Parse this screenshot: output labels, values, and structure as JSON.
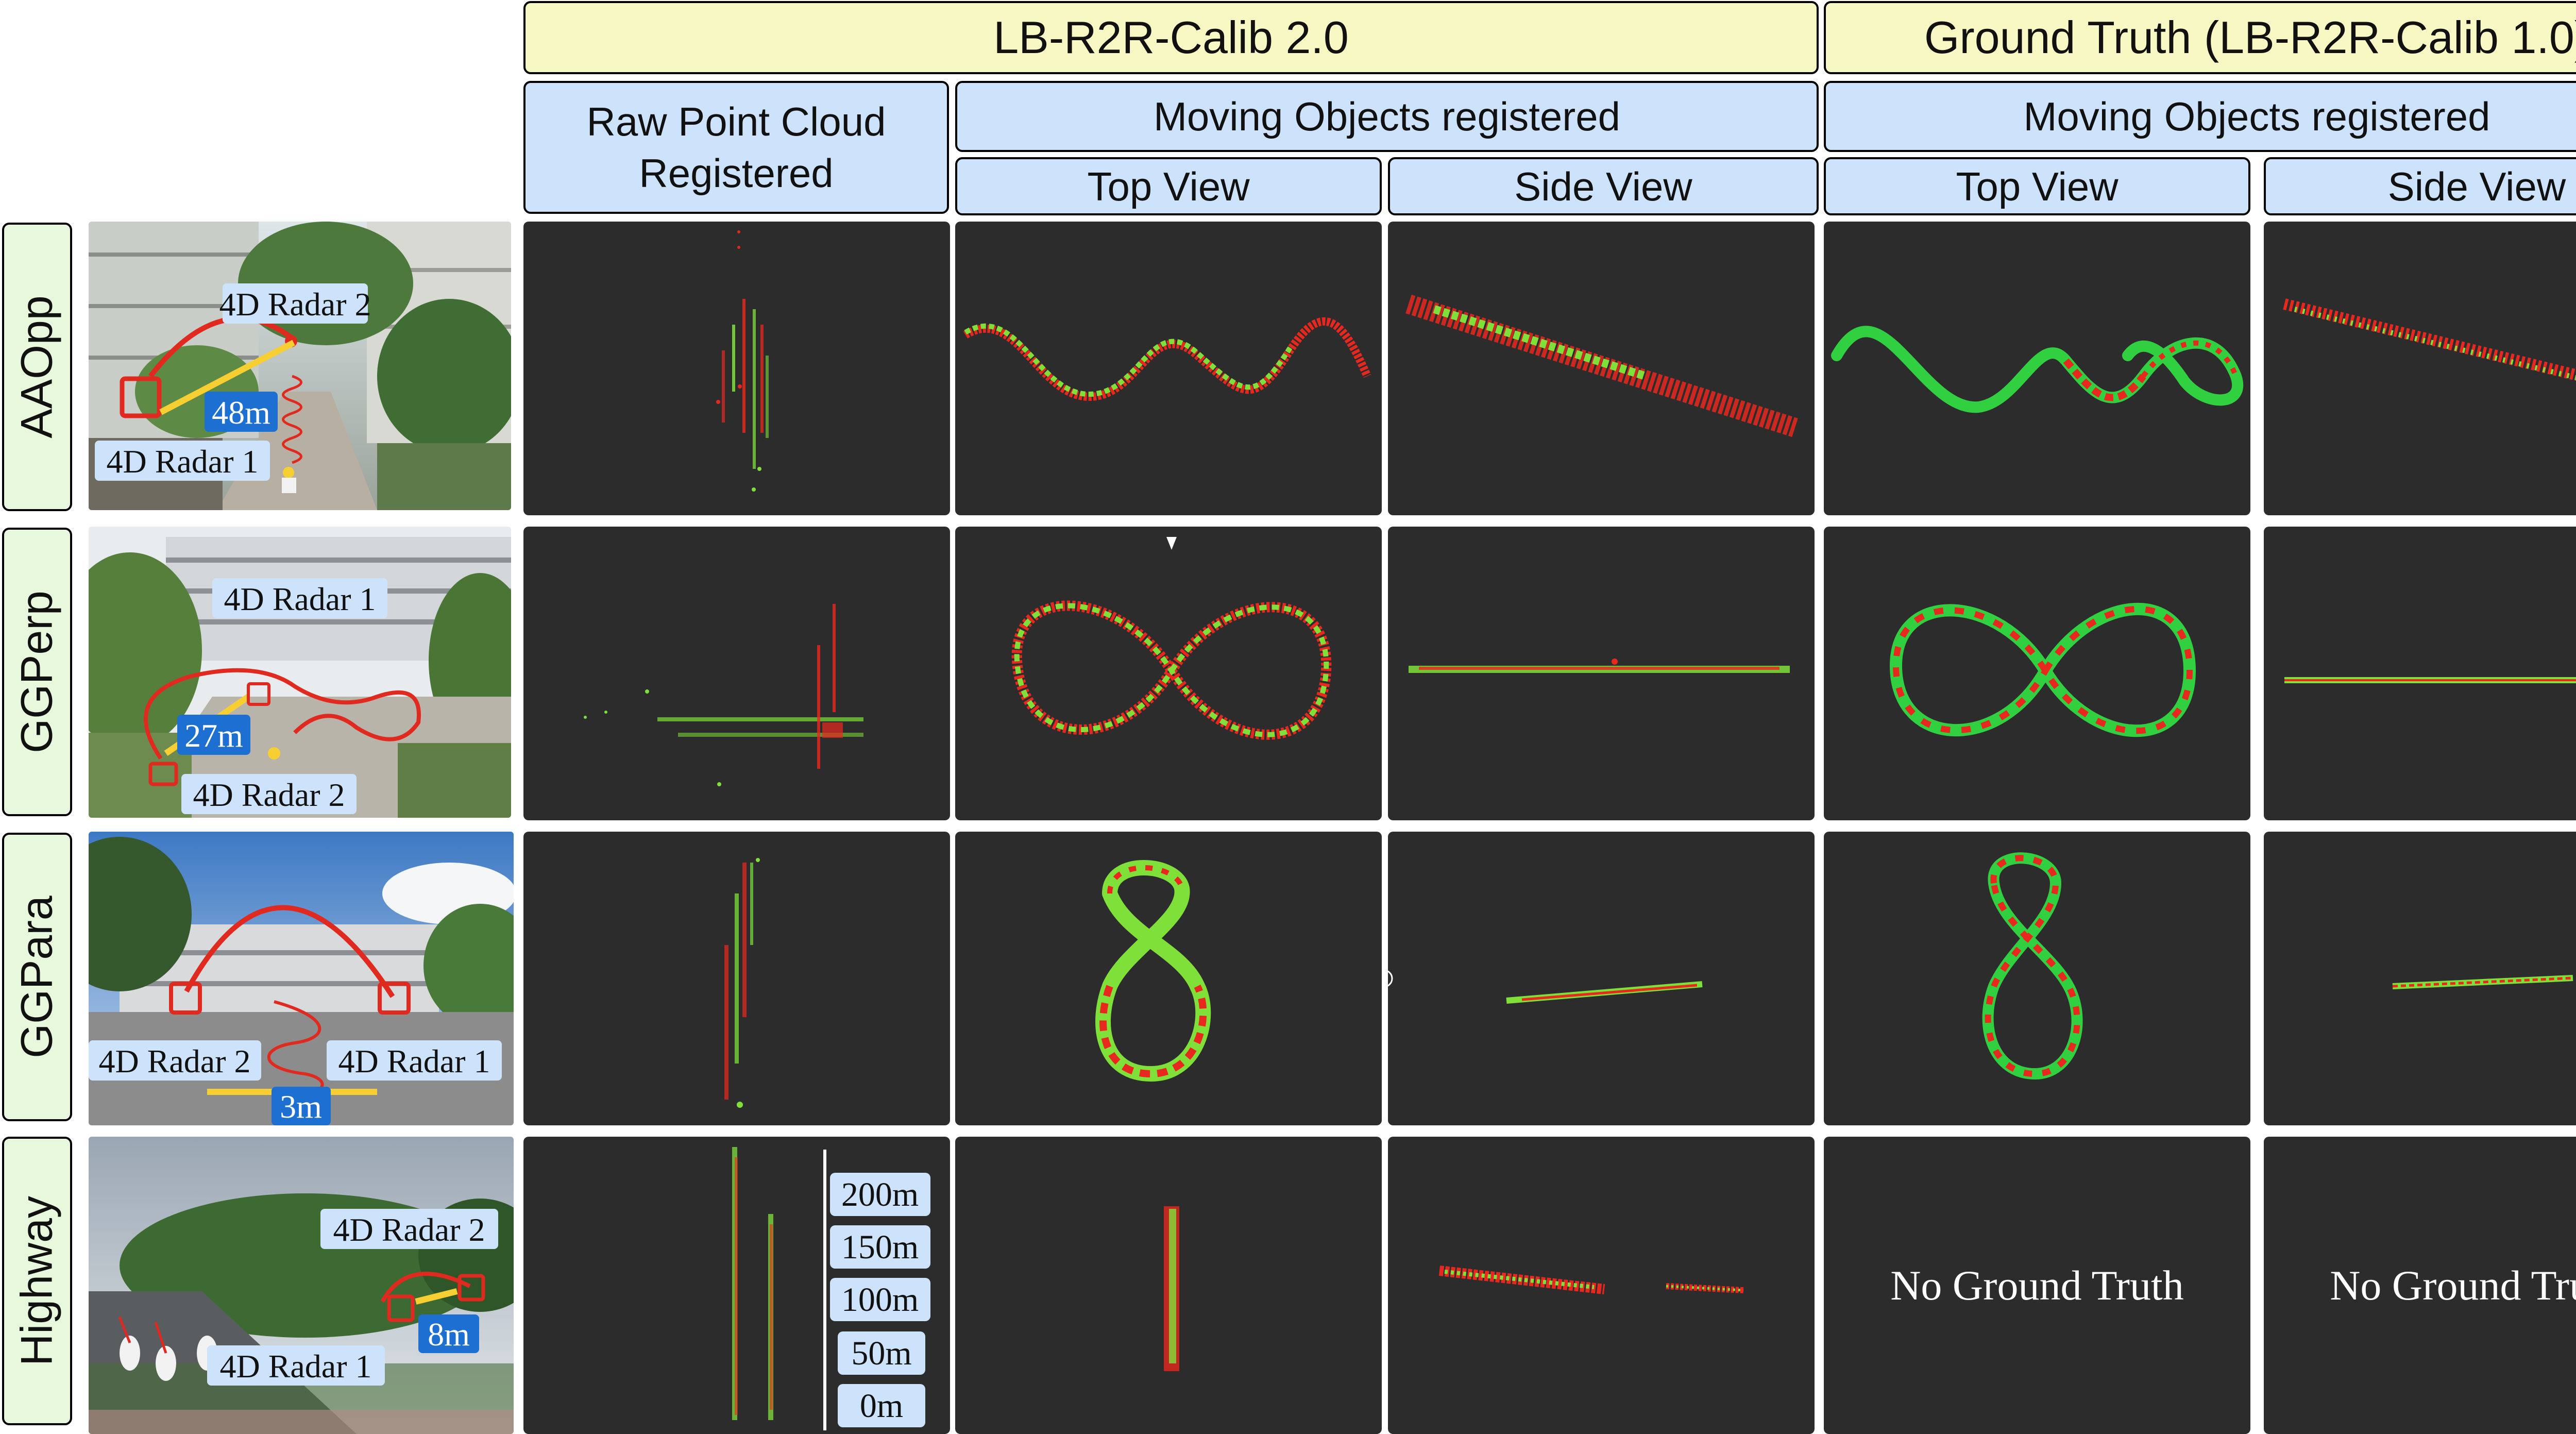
{
  "headers": {
    "method": "LB-R2R-Calib 2.0",
    "ground_truth": "Ground Truth (LB-R2R-Calib 1.0)",
    "raw_point_cloud": "Raw Point Cloud Registered",
    "moving_objects_method": "Moving Objects registered",
    "moving_objects_gt": "Moving Objects registered",
    "top_view_method": "Top View",
    "side_view_method": "Side View",
    "top_view_gt": "Top View",
    "side_view_gt": "Side View"
  },
  "rows": [
    {
      "name": "AAOpp",
      "radar_a": "4D Radar 2",
      "radar_b": "4D Radar 1",
      "distance": "48m"
    },
    {
      "name": "GGPerp",
      "radar_a": "4D Radar 1",
      "radar_b": "4D Radar 2",
      "distance": "27m"
    },
    {
      "name": "GGPara",
      "radar_a": "4D Radar 2",
      "radar_b": "4D Radar 1",
      "distance": "3m"
    },
    {
      "name": "Highway",
      "radar_a": "4D Radar 2",
      "radar_b": "4D Radar 1",
      "distance": "8m"
    }
  ],
  "scale_bar": [
    "200m",
    "150m",
    "100m",
    "50m",
    "0m"
  ],
  "no_ground_truth": "No Ground Truth",
  "colors": {
    "radar_1_points": "#e8281e",
    "radar_2_points": "#7fe03a",
    "panel_bg": "#2c2c2c"
  }
}
